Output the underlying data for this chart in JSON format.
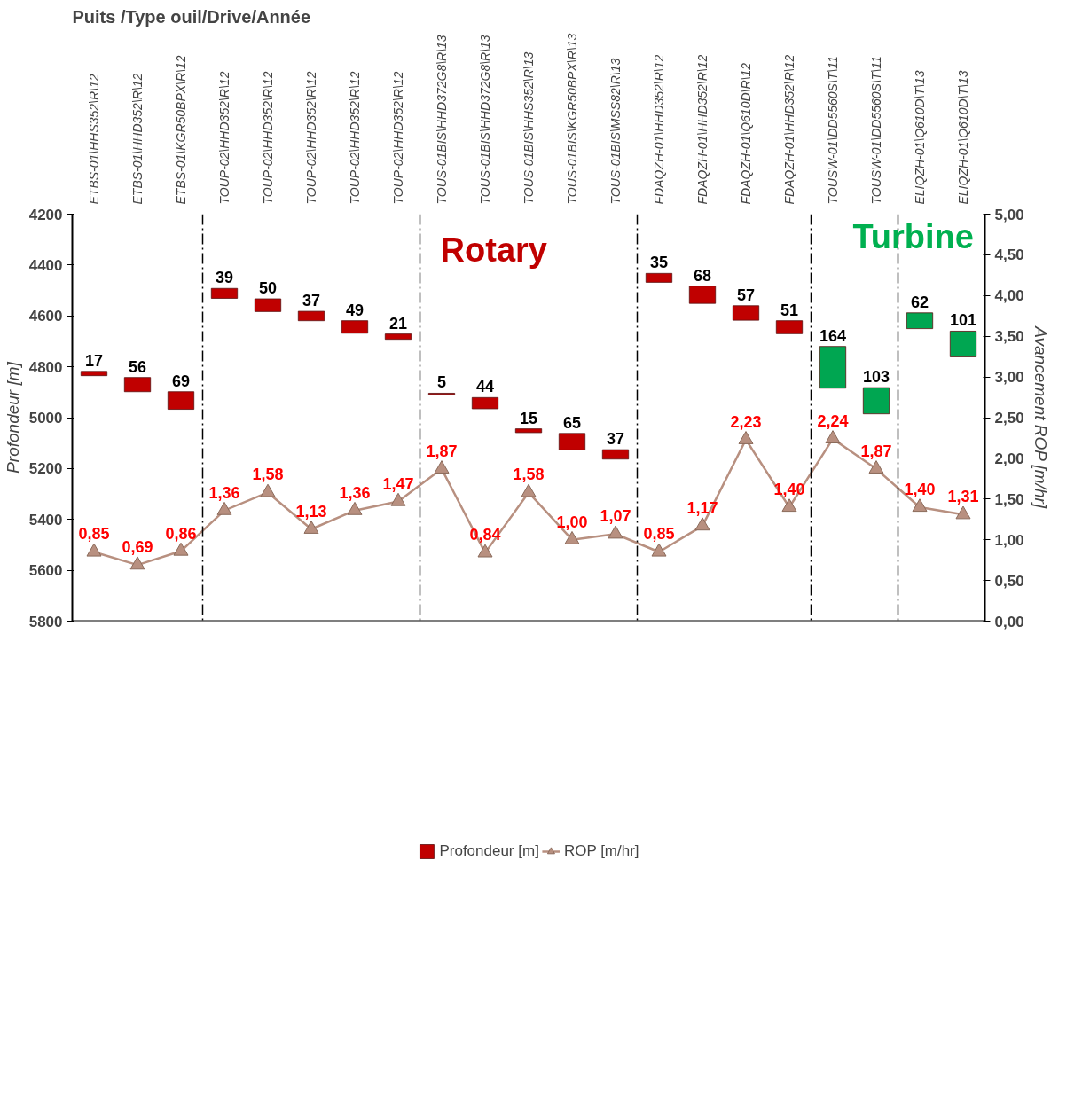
{
  "chart_data": {
    "type": "bar",
    "title": "Puits /Type ouil/Drive/Année",
    "ylabel": "Profondeur [m]",
    "y2label": "Avancement ROP [m/hr]",
    "categories": [
      "ETBS-01\\HHS352\\R\\12",
      "ETBS-01\\HHD352\\R\\12",
      "ETBS-01\\KGR50BPX\\R\\12",
      "TOUP-02\\HHD352\\R\\12",
      "TOUP-02\\HHD352\\R\\12",
      "TOUP-02\\HHD352\\R\\12",
      "TOUP-02\\HHD352\\R\\12",
      "TOUP-02\\HHD352\\R\\12",
      "TOUS-01BIS\\HHD372G8\\R\\13",
      "TOUS-01BIS\\HHD372G8\\R\\13",
      "TOUS-01BIS\\HHS352\\R\\13",
      "TOUS-01BIS\\KGR50BPX\\R\\13",
      "TOUS-01BIS\\MSS82\\R\\13",
      "FDAQZH-01\\HHD352\\R\\12",
      "FDAQZH-01\\HHD352\\R\\12",
      "FDAQZH-01\\Q610D\\R\\12",
      "FDAQZH-01\\HHD352\\R\\12",
      "TOUSW-01\\DD5560S\\T\\11",
      "TOUSW-01\\DD5560S\\T\\11",
      "ELIQZH-01\\Q610D\\T\\13",
      "ELIQZH-01\\Q610D\\T\\13"
    ],
    "series": [
      {
        "name": "Profondeur [m]",
        "base": [
          4818,
          4842,
          4898,
          4492,
          4533,
          4582,
          4619,
          4671,
          4904,
          4921,
          5044,
          5062,
          5126,
          4433,
          4483,
          4560,
          4619,
          4720,
          4882,
          4588,
          4660
        ],
        "values": [
          17,
          56,
          69,
          39,
          50,
          37,
          49,
          21,
          5,
          44,
          15,
          65,
          37,
          35,
          68,
          57,
          51,
          164,
          103,
          62,
          101
        ],
        "colors": [
          "#c00000",
          "#c00000",
          "#c00000",
          "#c00000",
          "#c00000",
          "#c00000",
          "#c00000",
          "#c00000",
          "#c00000",
          "#c00000",
          "#c00000",
          "#c00000",
          "#c00000",
          "#c00000",
          "#c00000",
          "#c00000",
          "#c00000",
          "#00a651",
          "#00a651",
          "#00a651",
          "#00a651"
        ]
      },
      {
        "name": "ROP [m/hr]",
        "type": "line",
        "axis": "y2",
        "color": "#b89080",
        "marker": "triangle",
        "values": [
          0.85,
          0.69,
          0.86,
          1.36,
          1.58,
          1.13,
          1.36,
          1.47,
          1.87,
          0.84,
          1.58,
          1.0,
          1.07,
          0.85,
          1.17,
          2.23,
          1.4,
          2.24,
          1.87,
          1.4,
          1.31
        ],
        "value_labels": [
          "0,85",
          "0,69",
          "0,86",
          "1,36",
          "1,58",
          "1,13",
          "1,36",
          "1,47",
          "1,87",
          "0,84",
          "1,58",
          "1,00",
          "1,07",
          "0,85",
          "1,17",
          "2,23",
          "1,40",
          "2,24",
          "1,87",
          "1,40",
          "1,31"
        ]
      }
    ],
    "data_labels": true,
    "ylim": [
      5800,
      4200
    ],
    "yticks": [
      4200,
      4400,
      4600,
      4800,
      5000,
      5200,
      5400,
      5600,
      5800
    ],
    "y2lim": [
      0,
      5
    ],
    "y2ticks": [
      {
        "value": 0,
        "label": "0,00"
      },
      {
        "value": 0.5,
        "label": "0,50"
      },
      {
        "value": 1,
        "label": "1,00"
      },
      {
        "value": 1.5,
        "label": "1,50"
      },
      {
        "value": 2,
        "label": "2,00"
      },
      {
        "value": 2.5,
        "label": "2,50"
      },
      {
        "value": 3,
        "label": "3,00"
      },
      {
        "value": 3.5,
        "label": "3,50"
      },
      {
        "value": 4,
        "label": "4,00"
      },
      {
        "value": 4.5,
        "label": "4,50"
      },
      {
        "value": 5,
        "label": "5,00"
      }
    ],
    "annotations": [
      "Rotary",
      "Turbine"
    ],
    "grid": false,
    "legend": "bottom"
  }
}
